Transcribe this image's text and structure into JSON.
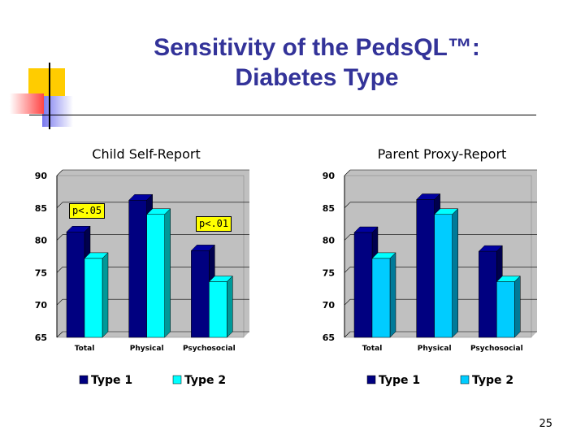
{
  "slide": {
    "title_line1": "Sensitivity of the PedsQL™:",
    "title_line2": "Diabetes Type",
    "page_number": "25"
  },
  "colors": {
    "title": "#333399",
    "type1": "#000080",
    "type2_child": "#00FFFF",
    "type2_parent": "#00CCFF",
    "plot_bg": "#C0C0C0",
    "annotation_bg": "#FFFF00"
  },
  "chart_data": [
    {
      "type": "bar",
      "title": "Child Self-Report",
      "categories": [
        "Total",
        "Physical",
        "Psychosocial"
      ],
      "series": [
        {
          "name": "Type 1",
          "values": [
            81.3,
            86.2,
            78.4
          ]
        },
        {
          "name": "Type 2",
          "values": [
            77.2,
            84.0,
            73.6
          ]
        }
      ],
      "ylim": [
        65,
        90
      ],
      "yticks": [
        90,
        85,
        80,
        75,
        70,
        65
      ],
      "legend_position": "bottom",
      "annotations": [
        {
          "text": "p<.05",
          "category": "Total"
        },
        {
          "text": "p<.01",
          "category": "Psychosocial"
        }
      ]
    },
    {
      "type": "bar",
      "title": "Parent Proxy-Report",
      "categories": [
        "Total",
        "Physical",
        "Psychosocial"
      ],
      "series": [
        {
          "name": "Type 1",
          "values": [
            81.2,
            86.3,
            78.3
          ]
        },
        {
          "name": "Type 2",
          "values": [
            77.2,
            84.0,
            73.6
          ]
        }
      ],
      "ylim": [
        65,
        90
      ],
      "yticks": [
        90,
        85,
        80,
        75,
        70,
        65
      ],
      "legend_position": "bottom"
    }
  ]
}
